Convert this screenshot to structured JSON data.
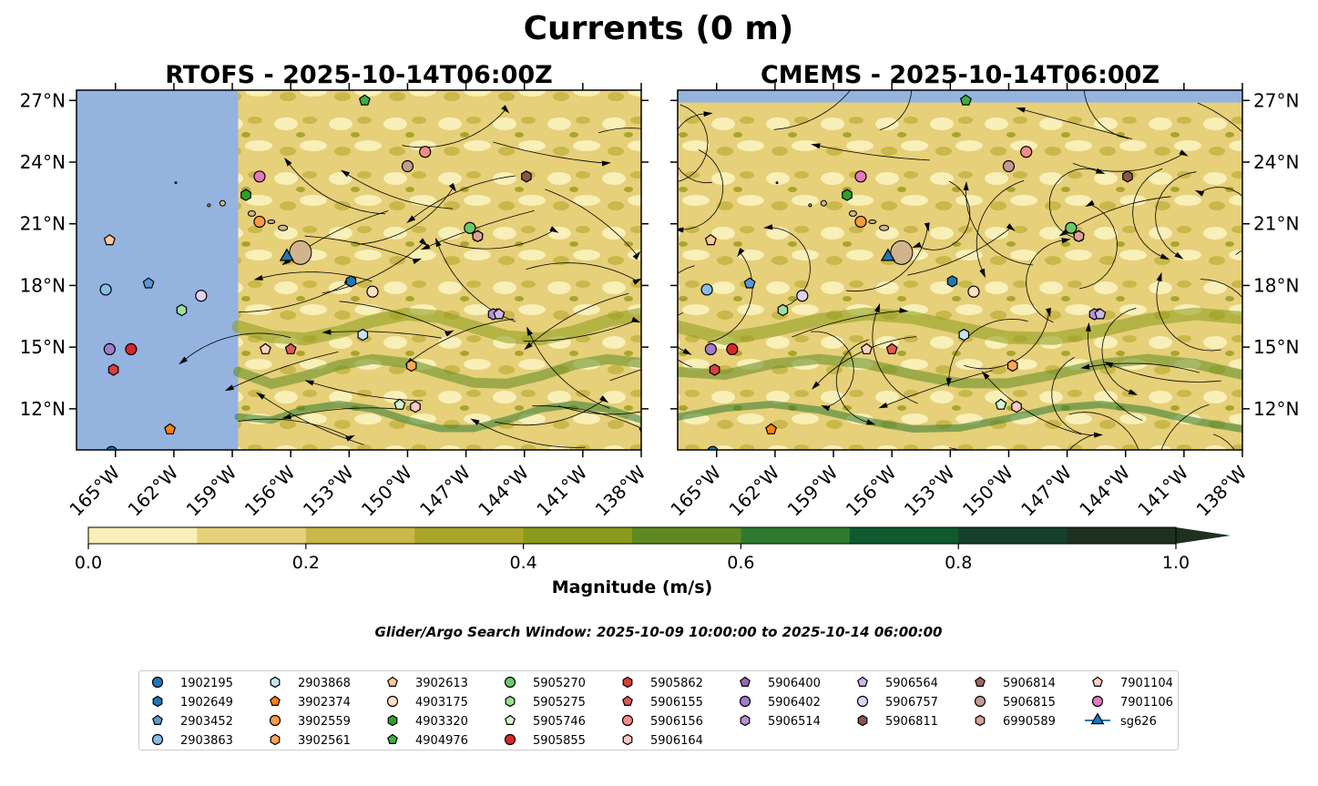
{
  "figure": {
    "suptitle": "Currents (0 m)",
    "window_text": "Glider/Argo Search Window: 2025-10-09 10:00:00 to 2025-10-14 06:00:00"
  },
  "colors": {
    "land": "#d2b48c",
    "nodata": "#95b3df",
    "magnitude_scale": [
      "#f8f0b8",
      "#e6d07a",
      "#c9b84a",
      "#a9a52b",
      "#8a9a1c",
      "#5f8a22",
      "#2f7a2e",
      "#0f5a2e",
      "#17402a",
      "#1e3020"
    ]
  },
  "chart_data": [
    {
      "type": "map-contour",
      "title": "RTOFS - 2025-10-14T06:00Z",
      "lon_range": [
        -167,
        -138
      ],
      "lat_range": [
        10,
        27.5
      ],
      "xticks": [
        "165°W",
        "162°W",
        "159°W",
        "156°W",
        "153°W",
        "150°W",
        "147°W",
        "144°W",
        "141°W",
        "138°W"
      ],
      "xtick_values": [
        -165,
        -162,
        -159,
        -156,
        -153,
        -150,
        -147,
        -144,
        -141,
        -138
      ],
      "yticks": [
        "27°N",
        "24°N",
        "21°N",
        "18°N",
        "15°N",
        "12°N"
      ],
      "ytick_values": [
        27,
        24,
        21,
        18,
        15,
        12
      ],
      "data_start_lon": -158.7
    },
    {
      "type": "map-contour",
      "title": "CMEMS - 2025-10-14T06:00Z",
      "lon_range": [
        -167,
        -138
      ],
      "lat_range": [
        10,
        27.5
      ],
      "xticks": [
        "165°W",
        "162°W",
        "159°W",
        "156°W",
        "153°W",
        "150°W",
        "147°W",
        "144°W",
        "141°W",
        "138°W"
      ],
      "xtick_values": [
        -165,
        -162,
        -159,
        -156,
        -153,
        -150,
        -147,
        -144,
        -141,
        -138
      ],
      "yticks": [
        "27°N",
        "24°N",
        "21°N",
        "18°N",
        "15°N",
        "12°N"
      ],
      "ytick_values": [
        27,
        24,
        21,
        18,
        15,
        12
      ],
      "data_top_lat": 26.9
    }
  ],
  "colorbar": {
    "label": "Magnitude (m/s)",
    "min": 0.0,
    "max": 1.0,
    "ticks": [
      "0.0",
      "0.2",
      "0.4",
      "0.6",
      "0.8",
      "1.0"
    ],
    "tick_values": [
      0,
      0.2,
      0.4,
      0.6,
      0.8,
      1.0
    ],
    "extend": "max"
  },
  "markers": [
    {
      "id": "1902195",
      "shape": "circle",
      "color": "#1f77b4",
      "lon": -165.2,
      "lat": 9.9
    },
    {
      "id": "1902649",
      "shape": "hexagon",
      "color": "#1f77b4",
      "lon": -152.9,
      "lat": 18.2
    },
    {
      "id": "2903452",
      "shape": "pentagon",
      "color": "#5a9ad6",
      "lon": -163.3,
      "lat": 18.1
    },
    {
      "id": "2903863",
      "shape": "circle",
      "color": "#87bde6",
      "lon": -165.5,
      "lat": 17.8
    },
    {
      "id": "2903868",
      "shape": "hexagon",
      "color": "#c6e2f5",
      "lon": -152.3,
      "lat": 15.6
    },
    {
      "id": "3902374",
      "shape": "pentagon",
      "color": "#ff7f0e",
      "lon": -162.2,
      "lat": 11.0
    },
    {
      "id": "3902559",
      "shape": "circle",
      "color": "#ff9940",
      "lon": -157.6,
      "lat": 21.1
    },
    {
      "id": "3902561",
      "shape": "hexagon",
      "color": "#ffa857",
      "lon": -149.8,
      "lat": 14.1
    },
    {
      "id": "3902613",
      "shape": "pentagon",
      "color": "#ffc895",
      "lon": -165.3,
      "lat": 20.2
    },
    {
      "id": "4903175",
      "shape": "circle",
      "color": "#ffe1c2",
      "lon": -151.8,
      "lat": 17.7
    },
    {
      "id": "4903320",
      "shape": "hexagon",
      "color": "#2ca02c",
      "lon": -158.3,
      "lat": 22.4
    },
    {
      "id": "4904976",
      "shape": "pentagon",
      "color": "#3cb044",
      "lon": -152.2,
      "lat": 27.0
    },
    {
      "id": "5905270",
      "shape": "circle",
      "color": "#6cc96a",
      "lon": -146.8,
      "lat": 20.8
    },
    {
      "id": "5905275",
      "shape": "hexagon",
      "color": "#9be09a",
      "lon": -161.6,
      "lat": 16.8
    },
    {
      "id": "5905746",
      "shape": "pentagon",
      "color": "#d3f5cf",
      "lon": -150.4,
      "lat": 12.2
    },
    {
      "id": "5905855",
      "shape": "circle",
      "color": "#d62728",
      "lon": -164.2,
      "lat": 14.9
    },
    {
      "id": "5905862",
      "shape": "hexagon",
      "color": "#d8403a",
      "lon": -165.1,
      "lat": 13.9
    },
    {
      "id": "5906155",
      "shape": "pentagon",
      "color": "#e05a55",
      "lon": -156.0,
      "lat": 14.9
    },
    {
      "id": "5906156",
      "shape": "circle",
      "color": "#f08c8a",
      "lon": -149.1,
      "lat": 24.5
    },
    {
      "id": "5906164",
      "shape": "hexagon",
      "color": "#ffc7c7",
      "lon": -149.6,
      "lat": 12.1
    },
    {
      "id": "5906400",
      "shape": "pentagon",
      "color": "#9467bd",
      "lon": -145.4,
      "lat": 16.6
    },
    {
      "id": "5906402",
      "shape": "circle",
      "color": "#a27ccc",
      "lon": -165.3,
      "lat": 14.9
    },
    {
      "id": "5906514",
      "shape": "hexagon",
      "color": "#b692da",
      "lon": -145.6,
      "lat": 16.6
    },
    {
      "id": "5906564",
      "shape": "pentagon",
      "color": "#cfb7ea",
      "lon": -145.3,
      "lat": 16.6
    },
    {
      "id": "5906757",
      "shape": "circle",
      "color": "#e2d2f2",
      "lon": -160.6,
      "lat": 17.5
    },
    {
      "id": "5906811",
      "shape": "hexagon",
      "color": "#8c564b",
      "lon": -143.9,
      "lat": 23.3
    },
    {
      "id": "5906814",
      "shape": "pentagon",
      "color": "#a0685e",
      "lon": -146.4,
      "lat": 20.4
    },
    {
      "id": "5906815",
      "shape": "circle",
      "color": "#c49c94",
      "lon": -150.0,
      "lat": 23.8
    },
    {
      "id": "6990589",
      "shape": "hexagon",
      "color": "#dba29a",
      "lon": -146.4,
      "lat": 20.4
    },
    {
      "id": "7901104",
      "shape": "pentagon",
      "color": "#ffcfc0",
      "lon": -157.3,
      "lat": 14.9
    },
    {
      "id": "7901106",
      "shape": "circle",
      "color": "#e377c2",
      "lon": -157.6,
      "lat": 23.3
    },
    {
      "id": "sg626",
      "shape": "triangle",
      "color": "#1f77b4",
      "lon": -156.2,
      "lat": 19.4
    }
  ],
  "legend": {
    "columns": [
      [
        {
          "label": "1902195",
          "marker": "1902195"
        },
        {
          "label": "1902649",
          "marker": "1902649"
        },
        {
          "label": "2903452",
          "marker": "2903452"
        },
        {
          "label": "2903863",
          "marker": "2903863"
        }
      ],
      [
        {
          "label": "2903868",
          "marker": "2903868"
        },
        {
          "label": "3902374",
          "marker": "3902374"
        },
        {
          "label": "3902559",
          "marker": "3902559"
        },
        {
          "label": "3902561",
          "marker": "3902561"
        }
      ],
      [
        {
          "label": "3902613",
          "marker": "3902613"
        },
        {
          "label": "4903175",
          "marker": "4903175"
        },
        {
          "label": "4903320",
          "marker": "4903320"
        },
        {
          "label": "4904976",
          "marker": "4904976"
        }
      ],
      [
        {
          "label": "5905270",
          "marker": "5905270"
        },
        {
          "label": "5905275",
          "marker": "5905275"
        },
        {
          "label": "5905746",
          "marker": "5905746"
        },
        {
          "label": "5905855",
          "marker": "5905855"
        }
      ],
      [
        {
          "label": "5905862",
          "marker": "5905862"
        },
        {
          "label": "5906155",
          "marker": "5906155"
        },
        {
          "label": "5906156",
          "marker": "5906156"
        },
        {
          "label": "5906164",
          "marker": "5906164"
        }
      ],
      [
        {
          "label": "5906400",
          "marker": "5906400"
        },
        {
          "label": "5906402",
          "marker": "5906402"
        },
        {
          "label": "5906514",
          "marker": "5906514"
        }
      ],
      [
        {
          "label": "5906564",
          "marker": "5906564"
        },
        {
          "label": "5906757",
          "marker": "5906757"
        },
        {
          "label": "5906811",
          "marker": "5906811"
        }
      ],
      [
        {
          "label": "5906814",
          "marker": "5906814"
        },
        {
          "label": "5906815",
          "marker": "5906815"
        },
        {
          "label": "6990589",
          "marker": "6990589"
        }
      ],
      [
        {
          "label": "7901104",
          "marker": "7901104"
        },
        {
          "label": "7901106",
          "marker": "7901106"
        },
        {
          "label": "sg626",
          "marker": "sg626"
        }
      ]
    ]
  }
}
